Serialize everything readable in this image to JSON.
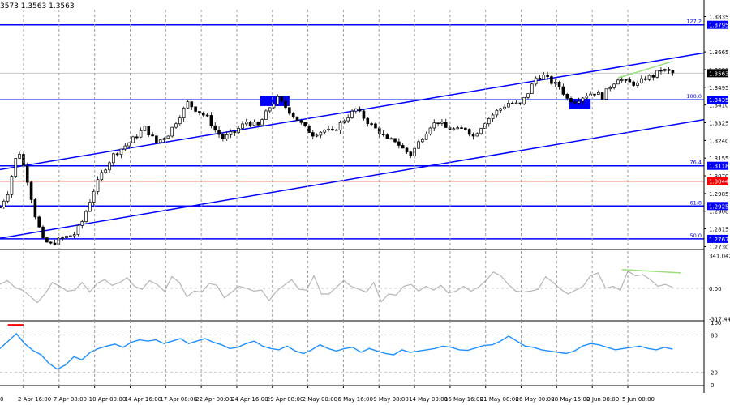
{
  "header": {
    "ohlc_text": "3573 1.3563 1.3563"
  },
  "colors": {
    "bg": "#ffffff",
    "grid": "#9a9a9a",
    "blue": "#0000ff",
    "red": "#ff0000",
    "green": "#9ae07a",
    "cci": "#b5b5b5",
    "rsi": "#1e90ff",
    "candle": "#000000"
  },
  "chart_data": [
    {
      "type": "candlestick",
      "panel": "price",
      "ylim": [
        1.272,
        1.386
      ],
      "y_ticks": [
        "1.3835",
        "1.3665",
        "1.3580",
        "1.3495",
        "1.3410",
        "1.3325",
        "1.3240",
        "1.3155",
        "1.3070",
        "1.2985",
        "1.2900",
        "1.2815",
        "1.2730"
      ],
      "x_labels": [
        "2 Apr 16:00",
        "7 Apr 08:00",
        "10 Apr 00:00",
        "14 Apr 16:00",
        "17 Apr 08:00",
        "22 Apr 00:00",
        "24 Apr 16:00",
        "29 Apr 08:00",
        "2 May 00:00",
        "6 May 16:00",
        "9 May 08:00",
        "14 May 00:00",
        "16 May 16:00",
        "21 May 08:00",
        "26 May 00:00",
        "28 May 16:00",
        "2 Jun 08:00",
        "5 Jun 00:00"
      ],
      "x_label_left_fragment": "0",
      "x_range": [
        0,
        180
      ],
      "close_anchors": [
        [
          0,
          1.292
        ],
        [
          2,
          1.299
        ],
        [
          4,
          1.315
        ],
        [
          5,
          1.318
        ],
        [
          7,
          1.305
        ],
        [
          9,
          1.288
        ],
        [
          11,
          1.276
        ],
        [
          13,
          1.274
        ],
        [
          16,
          1.277
        ],
        [
          19,
          1.279
        ],
        [
          21,
          1.285
        ],
        [
          24,
          1.3
        ],
        [
          26,
          1.308
        ],
        [
          29,
          1.317
        ],
        [
          33,
          1.323
        ],
        [
          37,
          1.33
        ],
        [
          40,
          1.323
        ],
        [
          43,
          1.327
        ],
        [
          46,
          1.336
        ],
        [
          48,
          1.342
        ],
        [
          50,
          1.339
        ],
        [
          53,
          1.335
        ],
        [
          55,
          1.329
        ],
        [
          57,
          1.325
        ],
        [
          60,
          1.328
        ],
        [
          63,
          1.333
        ],
        [
          66,
          1.331
        ],
        [
          69,
          1.34
        ],
        [
          71,
          1.344
        ],
        [
          73,
          1.34
        ],
        [
          76,
          1.334
        ],
        [
          78,
          1.33
        ],
        [
          80,
          1.327
        ],
        [
          83,
          1.329
        ],
        [
          85,
          1.328
        ],
        [
          88,
          1.334
        ],
        [
          91,
          1.339
        ],
        [
          94,
          1.333
        ],
        [
          97,
          1.328
        ],
        [
          99,
          1.324
        ],
        [
          101,
          1.324
        ],
        [
          103,
          1.32
        ],
        [
          105,
          1.317
        ],
        [
          107,
          1.323
        ],
        [
          110,
          1.331
        ],
        [
          112,
          1.333
        ],
        [
          114,
          1.33
        ],
        [
          117,
          1.329
        ],
        [
          119,
          1.33
        ],
        [
          121,
          1.326
        ],
        [
          124,
          1.333
        ],
        [
          127,
          1.338
        ],
        [
          130,
          1.342
        ],
        [
          133,
          1.341
        ],
        [
          135,
          1.347
        ],
        [
          137,
          1.354
        ],
        [
          139,
          1.355
        ],
        [
          141,
          1.352
        ],
        [
          143,
          1.35
        ],
        [
          145,
          1.344
        ],
        [
          147,
          1.343
        ],
        [
          150,
          1.346
        ],
        [
          152,
          1.347
        ],
        [
          154,
          1.345
        ],
        [
          156,
          1.35
        ],
        [
          158,
          1.354
        ],
        [
          160,
          1.352
        ],
        [
          163,
          1.351
        ],
        [
          165,
          1.354
        ],
        [
          167,
          1.355
        ],
        [
          169,
          1.358
        ],
        [
          171,
          1.357
        ],
        [
          172,
          1.3563
        ]
      ],
      "horizontal_levels": [
        {
          "price": 1.3795,
          "label": "1.3795",
          "fib": "127.2",
          "color": "blue"
        },
        {
          "price": 1.3435,
          "label": "1.3435",
          "fib": "100.0",
          "color": "blue"
        },
        {
          "price": 1.3118,
          "label": "1.3118",
          "fib": "76.4",
          "color": "blue"
        },
        {
          "price": 1.3044,
          "label": "1.3044",
          "fib": "",
          "color": "red"
        },
        {
          "price": 1.2925,
          "label": "1.2925",
          "fib": "61.8",
          "color": "blue"
        },
        {
          "price": 1.2767,
          "label": "1.2767",
          "fib": "50.0",
          "color": "blue"
        }
      ],
      "fib_labels": [
        "127.2",
        "100.0",
        "76.4",
        "61.8",
        "50.0"
      ],
      "current_price": {
        "price": 1.3563,
        "label": "1.3563"
      },
      "channel": {
        "upper": [
          [
            0,
            1.31
          ],
          [
            180,
            1.366
          ]
        ],
        "lower": [
          [
            0,
            1.277
          ],
          [
            180,
            1.334
          ]
        ]
      },
      "boxes": [
        {
          "x1": 66.5,
          "x2": 74,
          "y1": 1.3455,
          "y2": 1.3405
        },
        {
          "x1": 145.5,
          "x2": 151,
          "y1": 1.344,
          "y2": 1.339
        }
      ],
      "trend_line": [
        [
          158,
          1.354
        ],
        [
          172,
          1.362
        ]
      ]
    },
    {
      "type": "line",
      "panel": "cci",
      "ylim": [
        -330,
        370
      ],
      "ticks": [
        "341.0423",
        "0.00",
        "-317.444"
      ],
      "levels": [
        341.0423,
        0,
        -317.444
      ],
      "values": [
        40,
        80,
        10,
        -20,
        -80,
        -150,
        -60,
        60,
        20,
        -30,
        -20,
        60,
        -40,
        50,
        90,
        30,
        60,
        110,
        20,
        -10,
        80,
        40,
        -30,
        120,
        60,
        -90,
        -30,
        -40,
        50,
        30,
        -100,
        -40,
        20,
        0,
        -30,
        -20,
        -130,
        -30,
        30,
        90,
        -10,
        -20,
        130,
        -60,
        -60,
        10,
        80,
        20,
        -10,
        -40,
        60,
        -140,
        -60,
        -70,
        20,
        40,
        -30,
        20,
        -20,
        30,
        -50,
        -30,
        20,
        -30,
        10,
        80,
        170,
        130,
        40,
        -30,
        -40,
        -30,
        -10,
        120,
        60,
        -10,
        -60,
        -20,
        20,
        130,
        160,
        0,
        20,
        -20,
        180,
        130,
        140,
        90,
        20,
        40,
        10
      ],
      "trend_line": [
        [
          159,
          195
        ],
        [
          174,
          160
        ]
      ]
    },
    {
      "type": "line",
      "panel": "rsi",
      "ylim": [
        0,
        100
      ],
      "ticks": [
        "100",
        "80",
        "20",
        "0"
      ],
      "levels": [
        80,
        20
      ],
      "values": [
        58,
        70,
        82,
        66,
        55,
        48,
        34,
        25,
        32,
        45,
        40,
        52,
        58,
        62,
        65,
        60,
        68,
        72,
        70,
        72,
        66,
        70,
        74,
        66,
        70,
        74,
        68,
        64,
        58,
        60,
        66,
        70,
        62,
        58,
        56,
        62,
        54,
        50,
        56,
        64,
        58,
        54,
        58,
        60,
        52,
        58,
        54,
        50,
        48,
        56,
        52,
        54,
        56,
        58,
        62,
        60,
        56,
        55,
        59,
        63,
        64,
        70,
        78,
        70,
        62,
        60,
        56,
        54,
        52,
        50,
        54,
        62,
        66,
        64,
        60,
        56,
        58,
        60,
        62,
        58,
        56,
        60,
        57
      ],
      "red_marker": {
        "x1": 2,
        "x2": 6,
        "value": 96
      }
    }
  ]
}
